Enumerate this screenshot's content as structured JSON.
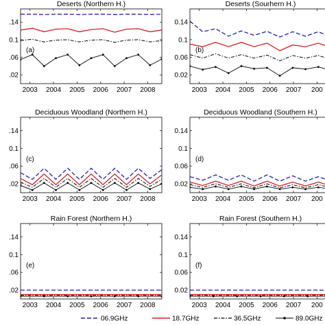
{
  "chart_data": [
    {
      "type": "line",
      "title": "Deserts (Northern H.)",
      "panel_label": "(a)",
      "xlim": [
        2002.6,
        2008.6
      ],
      "ylim": [
        0,
        0.17
      ],
      "xticks": [
        "2003",
        "2004",
        "2005",
        "2006",
        "2007",
        "2008"
      ],
      "yticks": [
        ".14",
        "0.1",
        ".06",
        ".02"
      ],
      "series": [
        {
          "name": "06.9GHz",
          "values": [
            0.158,
            0.158,
            0.157,
            0.158,
            0.158,
            0.157,
            0.158,
            0.158,
            0.157,
            0.158,
            0.158,
            0.157,
            0.158
          ]
        },
        {
          "name": "18.7GHz",
          "values": [
            0.122,
            0.126,
            0.118,
            0.124,
            0.125,
            0.118,
            0.123,
            0.125,
            0.117,
            0.124,
            0.125,
            0.118,
            0.122
          ]
        },
        {
          "name": "36.5GHz",
          "values": [
            0.098,
            0.101,
            0.095,
            0.099,
            0.1,
            0.095,
            0.099,
            0.1,
            0.094,
            0.099,
            0.1,
            0.095,
            0.098
          ]
        },
        {
          "name": "89.0GHz",
          "values": [
            0.055,
            0.066,
            0.04,
            0.058,
            0.066,
            0.042,
            0.058,
            0.066,
            0.04,
            0.058,
            0.066,
            0.042,
            0.056
          ]
        }
      ]
    },
    {
      "type": "line",
      "title": "Deserts (Sourhern H.)",
      "panel_label": "(b)",
      "xlim": [
        2002.6,
        2008.6
      ],
      "ylim": [
        0,
        0.17
      ],
      "xticks": [
        "2003",
        "2004",
        "2005",
        "2006",
        "2007",
        "200"
      ],
      "yticks": [
        "0.14",
        "0.1",
        "0.06",
        "0.02"
      ],
      "series": [
        {
          "name": "06.9GHz",
          "values": [
            0.142,
            0.118,
            0.125,
            0.108,
            0.12,
            0.11,
            0.119,
            0.106,
            0.118,
            0.108,
            0.118,
            0.106
          ]
        },
        {
          "name": "18.7GHz",
          "values": [
            0.09,
            0.084,
            0.094,
            0.084,
            0.094,
            0.084,
            0.092,
            0.075,
            0.088,
            0.084,
            0.092,
            0.082
          ]
        },
        {
          "name": "36.5GHz",
          "values": [
            0.066,
            0.058,
            0.068,
            0.058,
            0.066,
            0.058,
            0.065,
            0.052,
            0.064,
            0.058,
            0.064,
            0.055
          ]
        },
        {
          "name": "89.0GHz",
          "values": [
            0.04,
            0.032,
            0.038,
            0.024,
            0.04,
            0.034,
            0.036,
            0.018,
            0.036,
            0.033,
            0.038,
            0.03
          ]
        }
      ]
    },
    {
      "type": "line",
      "title": "Deciduous Woodland (Northern H.)",
      "panel_label": "(c)",
      "xlim": [
        2002.6,
        2008.6
      ],
      "ylim": [
        0,
        0.17
      ],
      "xticks": [
        "2003",
        "2004",
        "2005",
        "2006",
        "2007",
        "2008"
      ],
      "yticks": [
        ".14",
        "0.1",
        ".06",
        ".02"
      ],
      "series": [
        {
          "name": "06.9GHz",
          "values": [
            0.045,
            0.03,
            0.055,
            0.03,
            0.055,
            0.03,
            0.055,
            0.03,
            0.055,
            0.03,
            0.055,
            0.032,
            0.052
          ]
        },
        {
          "name": "18.7GHz",
          "values": [
            0.032,
            0.018,
            0.042,
            0.018,
            0.042,
            0.018,
            0.042,
            0.018,
            0.042,
            0.018,
            0.042,
            0.02,
            0.04
          ]
        },
        {
          "name": "36.5GHz",
          "values": [
            0.024,
            0.012,
            0.032,
            0.012,
            0.032,
            0.012,
            0.032,
            0.012,
            0.032,
            0.012,
            0.032,
            0.014,
            0.03
          ]
        },
        {
          "name": "89.0GHz",
          "values": [
            0.016,
            0.006,
            0.022,
            0.006,
            0.022,
            0.006,
            0.022,
            0.006,
            0.022,
            0.006,
            0.022,
            0.008,
            0.02
          ]
        }
      ]
    },
    {
      "type": "line",
      "title": "Deciduous Woodland (Southern H.)",
      "panel_label": "(d)",
      "xlim": [
        2002.6,
        2008.6
      ],
      "ylim": [
        0,
        0.17
      ],
      "xticks": [
        "2003",
        "2004",
        "2005",
        "2006",
        "2007",
        "200"
      ],
      "yticks": [
        "0.14",
        "0.1",
        "0.06",
        "0.02"
      ],
      "series": [
        {
          "name": "06.9GHz",
          "values": [
            0.036,
            0.028,
            0.04,
            0.028,
            0.04,
            0.026,
            0.04,
            0.026,
            0.038,
            0.026,
            0.036,
            0.026
          ]
        },
        {
          "name": "18.7GHz",
          "values": [
            0.024,
            0.016,
            0.026,
            0.016,
            0.026,
            0.015,
            0.026,
            0.015,
            0.024,
            0.015,
            0.024,
            0.015
          ]
        },
        {
          "name": "36.5GHz",
          "values": [
            0.018,
            0.012,
            0.02,
            0.012,
            0.02,
            0.011,
            0.02,
            0.011,
            0.018,
            0.011,
            0.018,
            0.011
          ]
        },
        {
          "name": "89.0GHz",
          "values": [
            0.012,
            0.008,
            0.014,
            0.008,
            0.014,
            0.008,
            0.014,
            0.008,
            0.012,
            0.008,
            0.012,
            0.008
          ]
        }
      ]
    },
    {
      "type": "line",
      "title": "Rain Forest (Northern H.)",
      "panel_label": "(e)",
      "xlim": [
        2002.6,
        2008.6
      ],
      "ylim": [
        0,
        0.17
      ],
      "xticks": [
        "2003",
        "2004",
        "2005",
        "2006",
        "2007",
        "2008"
      ],
      "yticks": [
        ".14",
        "0.1",
        ".06",
        ".02"
      ],
      "series": [
        {
          "name": "06.9GHz",
          "values": [
            0.02,
            0.02,
            0.02,
            0.02,
            0.02,
            0.02,
            0.02
          ]
        },
        {
          "name": "18.7GHz",
          "values": [
            0.01,
            0.01,
            0.01,
            0.01,
            0.01,
            0.01,
            0.01
          ]
        },
        {
          "name": "36.5GHz",
          "values": [
            0.008,
            0.008,
            0.008,
            0.008,
            0.008,
            0.008,
            0.008
          ]
        },
        {
          "name": "89.0GHz",
          "values": [
            0.006,
            0.006,
            0.006,
            0.006,
            0.006,
            0.006,
            0.006
          ]
        }
      ]
    },
    {
      "type": "line",
      "title": "Rain Forest (Southern H.)",
      "panel_label": "(f)",
      "xlim": [
        2002.6,
        2008.6
      ],
      "ylim": [
        0,
        0.17
      ],
      "xticks": [
        "2003",
        "2004",
        "2005",
        "2006",
        "2007",
        "200"
      ],
      "yticks": [
        "0.14",
        "0.1",
        "0.06",
        "0.02"
      ],
      "series": [
        {
          "name": "06.9GHz",
          "values": [
            0.02,
            0.02,
            0.02,
            0.02,
            0.02,
            0.02,
            0.02
          ]
        },
        {
          "name": "18.7GHz",
          "values": [
            0.01,
            0.01,
            0.01,
            0.01,
            0.01,
            0.01,
            0.01
          ]
        },
        {
          "name": "36.5GHz",
          "values": [
            0.008,
            0.008,
            0.008,
            0.008,
            0.008,
            0.008,
            0.008
          ]
        },
        {
          "name": "89.0GHz",
          "values": [
            0.006,
            0.006,
            0.006,
            0.006,
            0.006,
            0.006,
            0.006
          ]
        }
      ]
    }
  ],
  "legend": {
    "placement": "bottom",
    "entries": [
      {
        "label": "06.9GHz",
        "color": "#1f1fb0",
        "style": "dashed"
      },
      {
        "label": "18.7GHz",
        "color": "#d42020",
        "style": "solid"
      },
      {
        "label": "36.5GHz",
        "color": "#000000",
        "style": "dashdot"
      },
      {
        "label": "89.0GHz",
        "color": "#000000",
        "style": "dotted-marker"
      }
    ]
  }
}
